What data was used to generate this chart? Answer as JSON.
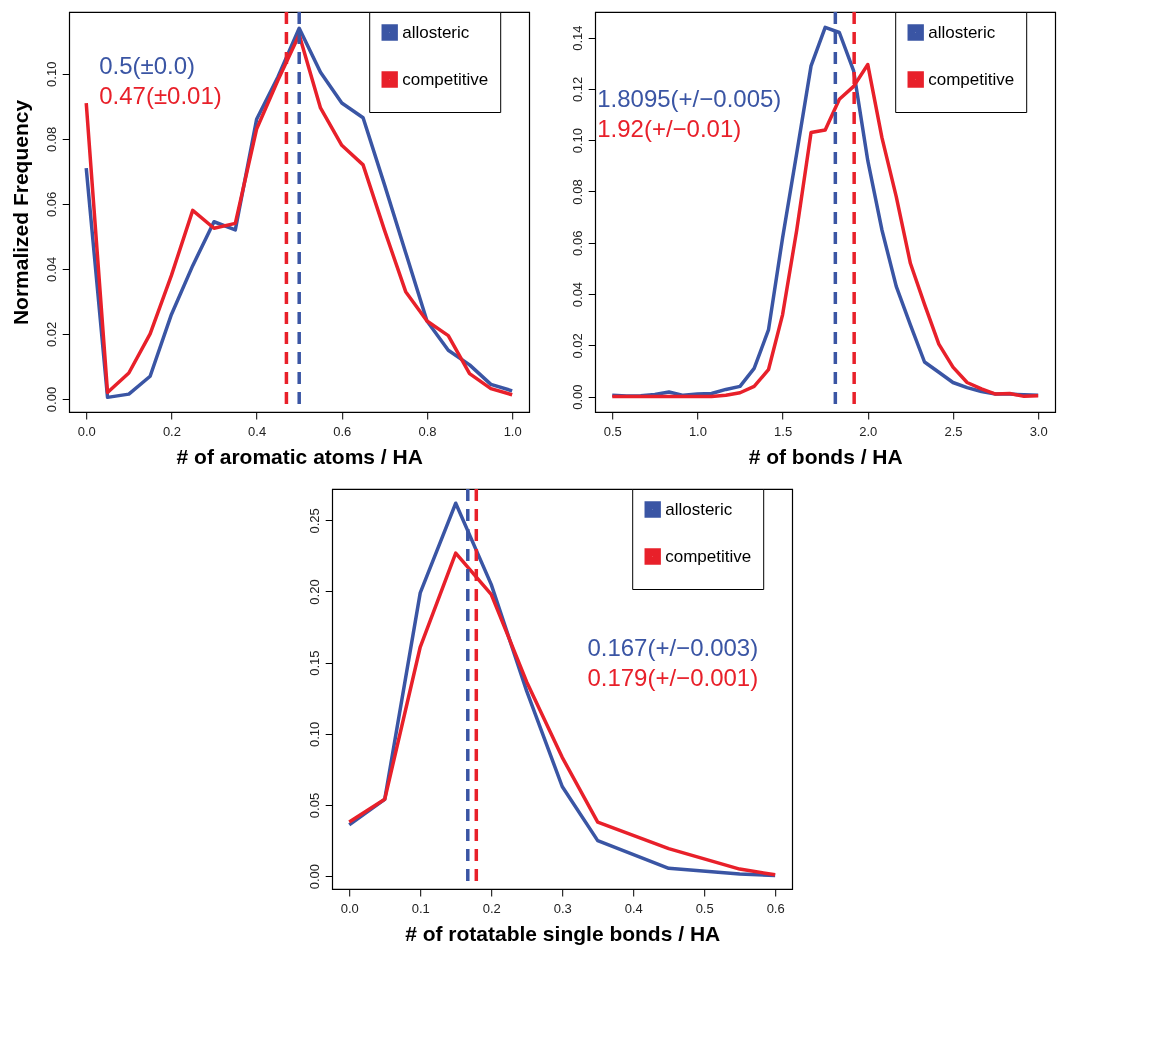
{
  "chart_data": [
    {
      "type": "line",
      "xlabel": "# of aromatic atoms / HA",
      "ylabel": "Normalized Frequency",
      "legend": "top right",
      "line_style": "solid",
      "x": [
        0,
        0.05,
        0.1,
        0.15,
        0.2,
        0.25,
        0.3,
        0.35,
        0.4,
        0.45,
        0.5,
        0.55,
        0.6,
        0.65,
        0.7,
        0.75,
        0.8,
        0.85,
        0.9,
        0.95,
        1.0
      ],
      "series": [
        {
          "name": "allosteric",
          "color": "#3a55a4",
          "values": [
            0.071,
            0.0005,
            0.0015,
            0.007,
            0.026,
            0.041,
            0.0545,
            0.052,
            0.086,
            0.099,
            0.114,
            0.1005,
            0.091,
            0.0865,
            0.066,
            0.045,
            0.024,
            0.015,
            0.0105,
            0.0045,
            0.0025
          ]
        },
        {
          "name": "competitive",
          "color": "#e8202a",
          "values": [
            0.091,
            0.002,
            0.008,
            0.02,
            0.038,
            0.058,
            0.0525,
            0.054,
            0.083,
            0.098,
            0.112,
            0.0895,
            0.078,
            0.072,
            0.052,
            0.033,
            0.024,
            0.0195,
            0.0078,
            0.0032,
            0.0013
          ]
        }
      ],
      "xlim": [
        -0.04,
        1.04
      ],
      "ylim": [
        -0.004,
        0.119
      ],
      "xticks": [
        {
          "value": 0,
          "label": "0.0"
        },
        {
          "value": 0.2,
          "label": "0.2"
        },
        {
          "value": 0.4,
          "label": "0.4"
        },
        {
          "value": 0.6,
          "label": "0.6"
        },
        {
          "value": 0.8,
          "label": "0.8"
        },
        {
          "value": 1,
          "label": "1.0"
        }
      ],
      "yticks": [
        {
          "value": 0,
          "label": "0.00"
        },
        {
          "value": 0.02,
          "label": "0.02"
        },
        {
          "value": 0.04,
          "label": "0.04"
        },
        {
          "value": 0.06,
          "label": "0.06"
        },
        {
          "value": 0.08,
          "label": "0.08"
        },
        {
          "value": 0.1,
          "label": "0.10"
        }
      ],
      "ref_lines": [
        {
          "axis": "x",
          "value": 0.5,
          "label": "0.5(±0.0)",
          "color": "#3a55a4",
          "line_style": "dashed"
        },
        {
          "axis": "x",
          "value": 0.47,
          "label": "0.47(±0.01)",
          "color": "#e8202a",
          "line_style": "dashed"
        }
      ]
    },
    {
      "type": "line",
      "xlabel": "# of bonds / HA",
      "legend": "top right",
      "line_style": "solid",
      "x": [
        0.5,
        0.583,
        0.667,
        0.75,
        0.833,
        0.917,
        1.0,
        1.083,
        1.167,
        1.25,
        1.333,
        1.417,
        1.5,
        1.583,
        1.667,
        1.75,
        1.833,
        1.917,
        2.0,
        2.083,
        2.167,
        2.25,
        2.333,
        2.417,
        2.5,
        2.583,
        2.667,
        2.75,
        2.833,
        2.917,
        3.0
      ],
      "series": [
        {
          "name": "allosteric",
          "color": "#3a55a4",
          "values": [
            0.0005,
            0.0002,
            0.0003,
            0.0008,
            0.0018,
            0.0005,
            0.001,
            0.0012,
            0.0028,
            0.004,
            0.011,
            0.026,
            0.062,
            0.095,
            0.129,
            0.144,
            0.142,
            0.127,
            0.092,
            0.065,
            0.043,
            0.028,
            0.0135,
            0.0095,
            0.0055,
            0.0035,
            0.002,
            0.001,
            0.001,
            0.0007,
            0.0005
          ]
        },
        {
          "name": "competitive",
          "color": "#e8202a",
          "values": [
            0,
            0,
            0,
            0,
            0,
            0,
            0,
            0,
            0.0005,
            0.0015,
            0.004,
            0.0105,
            0.032,
            0.065,
            0.103,
            0.104,
            0.116,
            0.121,
            0.1295,
            0.101,
            0.078,
            0.052,
            0.036,
            0.0205,
            0.0115,
            0.0055,
            0.003,
            0.001,
            0.0012,
            0.0001,
            0.0003
          ]
        }
      ],
      "xlim": [
        0.4,
        3.1
      ],
      "ylim": [
        -0.006,
        0.15
      ],
      "xticks": [
        {
          "value": 0.5,
          "label": "0.5"
        },
        {
          "value": 1,
          "label": "1.0"
        },
        {
          "value": 1.5,
          "label": "1.5"
        },
        {
          "value": 2,
          "label": "2.0"
        },
        {
          "value": 2.5,
          "label": "2.5"
        },
        {
          "value": 3,
          "label": "3.0"
        }
      ],
      "yticks": [
        {
          "value": 0,
          "label": "0.00"
        },
        {
          "value": 0.02,
          "label": "0.02"
        },
        {
          "value": 0.04,
          "label": "0.04"
        },
        {
          "value": 0.06,
          "label": "0.06"
        },
        {
          "value": 0.08,
          "label": "0.08"
        },
        {
          "value": 0.1,
          "label": "0.10"
        },
        {
          "value": 0.12,
          "label": "0.12"
        },
        {
          "value": 0.14,
          "label": "0.14"
        }
      ],
      "ref_lines": [
        {
          "axis": "x",
          "value": 1.8095,
          "label": "1.8095(+/−0.005)",
          "color": "#3a55a4",
          "line_style": "dashed"
        },
        {
          "axis": "x",
          "value": 1.92,
          "label": "1.92(+/−0.01)",
          "color": "#e8202a",
          "line_style": "dashed"
        }
      ]
    },
    {
      "type": "line",
      "xlabel": "# of rotatable single bonds / HA",
      "legend": "top right",
      "line_style": "solid",
      "x": [
        0,
        0.05,
        0.1,
        0.15,
        0.2,
        0.25,
        0.3,
        0.35,
        0.45,
        0.55,
        0.6
      ],
      "series": [
        {
          "name": "allosteric",
          "color": "#3a55a4",
          "values": [
            0.036,
            0.054,
            0.199,
            0.262,
            0.205,
            0.13,
            0.063,
            0.025,
            0.0055,
            0.0015,
            0.0005
          ]
        },
        {
          "name": "competitive",
          "color": "#e8202a",
          "values": [
            0.038,
            0.054,
            0.161,
            0.227,
            0.198,
            0.1365,
            0.0835,
            0.038,
            0.0194,
            0.005,
            0.001
          ]
        }
      ],
      "xlim": [
        -0.024,
        0.624
      ],
      "ylim": [
        -0.009,
        0.272
      ],
      "xticks": [
        {
          "value": 0,
          "label": "0.0"
        },
        {
          "value": 0.1,
          "label": "0.1"
        },
        {
          "value": 0.2,
          "label": "0.2"
        },
        {
          "value": 0.3,
          "label": "0.3"
        },
        {
          "value": 0.4,
          "label": "0.4"
        },
        {
          "value": 0.5,
          "label": "0.5"
        },
        {
          "value": 0.6,
          "label": "0.6"
        }
      ],
      "yticks": [
        {
          "value": 0,
          "label": "0.00"
        },
        {
          "value": 0.05,
          "label": "0.05"
        },
        {
          "value": 0.1,
          "label": "0.10"
        },
        {
          "value": 0.15,
          "label": "0.15"
        },
        {
          "value": 0.2,
          "label": "0.20"
        },
        {
          "value": 0.25,
          "label": "0.25"
        }
      ],
      "ref_lines": [
        {
          "axis": "x",
          "value": 0.167,
          "label": "0.167(+/−0.003)",
          "color": "#3a55a4",
          "line_style": "dashed"
        },
        {
          "axis": "x",
          "value": 0.179,
          "label": "0.179(+/−0.001)",
          "color": "#e8202a",
          "line_style": "dashed"
        }
      ]
    }
  ]
}
